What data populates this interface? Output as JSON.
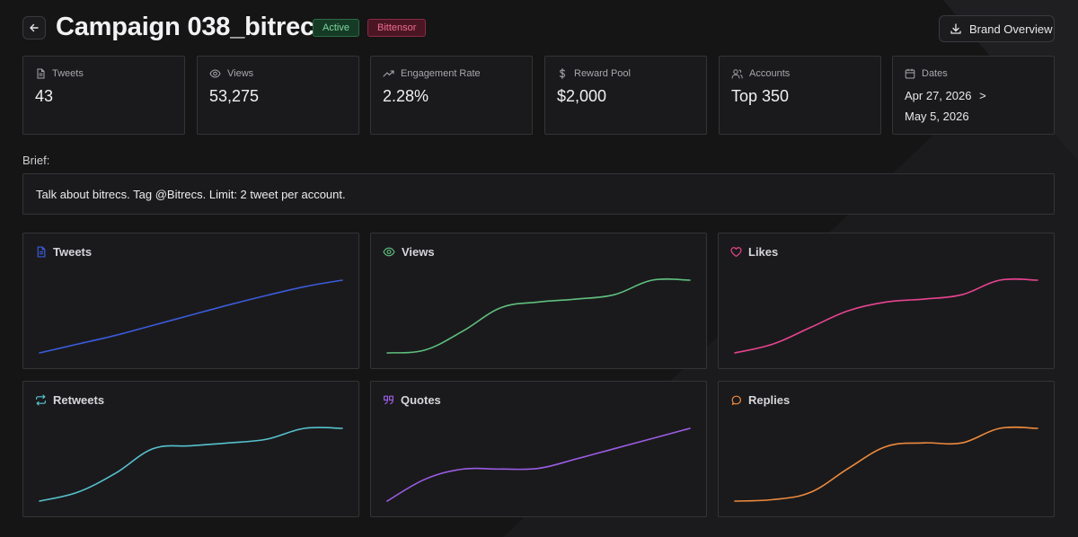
{
  "header": {
    "title": "Campaign 038_bitrecs",
    "badges": {
      "status": "Active",
      "network": "Bittensor"
    },
    "brand_button": "Brand Overview",
    "icons": {
      "back": "arrow-left-icon",
      "brand": "download-icon"
    }
  },
  "stats": {
    "tweets": {
      "label": "Tweets",
      "value": "43",
      "icon": "file-text-icon"
    },
    "views": {
      "label": "Views",
      "value": "53,275",
      "icon": "eye-icon"
    },
    "engagement": {
      "label": "Engagement Rate",
      "value": "2.28%",
      "icon": "trending-up-icon"
    },
    "reward": {
      "label": "Reward Pool",
      "value": "$2,000",
      "icon": "dollar-icon"
    },
    "accounts": {
      "label": "Accounts",
      "value": "Top 350",
      "icon": "users-icon"
    },
    "dates": {
      "label": "Dates",
      "start": "Apr 27, 2026",
      "separator": ">",
      "end": "May 5, 2026",
      "icon": "calendar-icon"
    }
  },
  "brief": {
    "label": "Brief:",
    "text": "Talk about bitrecs. Tag @Bitrecs. Limit: 2 tweet per account."
  },
  "chart_data": [
    {
      "type": "line",
      "title": "Tweets",
      "color": "#3b5bdb",
      "icon": "file-text-icon",
      "x": [
        0,
        1,
        2,
        3,
        4,
        5,
        6,
        7,
        8
      ],
      "values": [
        0,
        0.12,
        0.24,
        0.38,
        0.52,
        0.66,
        0.79,
        0.91,
        1.0
      ]
    },
    {
      "type": "line",
      "title": "Views",
      "color": "#5fbf7e",
      "icon": "eye-icon",
      "x": [
        0,
        1,
        2,
        3,
        4,
        5,
        6,
        7,
        8
      ],
      "values": [
        0,
        0.04,
        0.3,
        0.62,
        0.7,
        0.74,
        0.8,
        1.0,
        1.0
      ]
    },
    {
      "type": "line",
      "title": "Likes",
      "color": "#e8448f",
      "icon": "heart-icon",
      "x": [
        0,
        1,
        2,
        3,
        4,
        5,
        6,
        7,
        8
      ],
      "values": [
        0,
        0.12,
        0.35,
        0.58,
        0.7,
        0.74,
        0.8,
        1.0,
        1.0
      ]
    },
    {
      "type": "line",
      "title": "Retweets",
      "color": "#56c2cf",
      "icon": "repeat-icon",
      "x": [
        0,
        1,
        2,
        3,
        4,
        5,
        6,
        7,
        8
      ],
      "values": [
        0,
        0.12,
        0.38,
        0.72,
        0.76,
        0.8,
        0.85,
        1.0,
        1.0
      ]
    },
    {
      "type": "line",
      "title": "Quotes",
      "color": "#9b5de5",
      "icon": "quote-icon",
      "x": [
        0,
        1,
        2,
        3,
        4,
        5,
        6,
        7,
        8
      ],
      "values": [
        0,
        0.3,
        0.44,
        0.44,
        0.45,
        0.58,
        0.72,
        0.86,
        1.0
      ]
    },
    {
      "type": "line",
      "title": "Replies",
      "color": "#ef8a3c",
      "icon": "message-circle-icon",
      "x": [
        0,
        1,
        2,
        3,
        4,
        5,
        6,
        7,
        8
      ],
      "values": [
        0,
        0.02,
        0.12,
        0.45,
        0.75,
        0.8,
        0.8,
        1.0,
        1.0
      ]
    }
  ]
}
